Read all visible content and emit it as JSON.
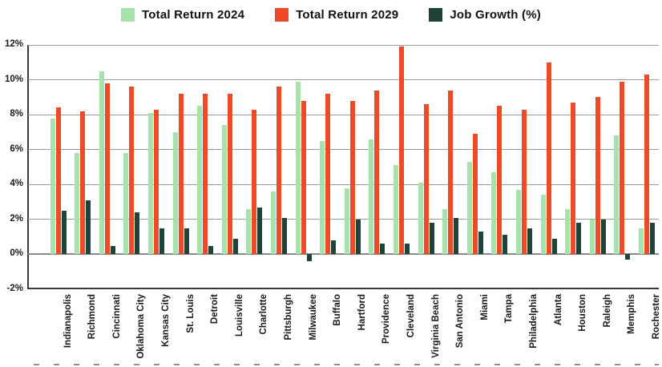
{
  "legend": {
    "items": [
      {
        "label": "Total Return 2024",
        "color": "#a6e3ab"
      },
      {
        "label": "Total Return 2029",
        "color": "#ef4a26"
      },
      {
        "label": "Job Growth (%)",
        "color": "#1f4337"
      }
    ]
  },
  "chart_data": {
    "type": "bar",
    "title": "",
    "xlabel": "",
    "ylabel": "",
    "ylim": [
      -2,
      12
    ],
    "ytick_step": 2,
    "yticks": [
      "12%",
      "10%",
      "8%",
      "6%",
      "4%",
      "2%",
      "0%",
      "-2%"
    ],
    "grid": "horizontal",
    "legend_position": "top",
    "categories": [
      "Indianapolis",
      "Richmond",
      "Cincinnati",
      "Oklahoma City",
      "Kansas City",
      "St. Louis",
      "Detroit",
      "Louisville",
      "Charlotte",
      "Pittsburgh",
      "Milwaukee",
      "Buffalo",
      "Hartford",
      "Providence",
      "Cleveland",
      "Virginia Beach",
      "San Antonio",
      "Miami",
      "Tampa",
      "Philadelphia",
      "Atlanta",
      "Houston",
      "Raleigh",
      "Memphis",
      "Rochester"
    ],
    "series": [
      {
        "name": "Total Return 2024",
        "color": "#a6e3ab",
        "values": [
          7.8,
          5.8,
          10.5,
          5.8,
          8.1,
          7.0,
          8.5,
          7.4,
          2.6,
          3.6,
          9.9,
          6.5,
          3.8,
          6.6,
          5.1,
          4.1,
          2.6,
          5.3,
          4.7,
          3.7,
          3.4,
          2.6,
          2.0,
          6.8,
          1.5
        ]
      },
      {
        "name": "Total Return 2029",
        "color": "#ef4a26",
        "values": [
          8.4,
          8.2,
          9.8,
          9.6,
          8.3,
          9.2,
          9.2,
          9.2,
          8.3,
          9.6,
          8.8,
          9.2,
          8.8,
          9.4,
          11.9,
          8.6,
          9.4,
          6.9,
          8.5,
          8.3,
          11.0,
          8.7,
          9.0,
          9.9,
          10.3
        ]
      },
      {
        "name": "Job Growth (%)",
        "color": "#1f4337",
        "values": [
          2.5,
          3.1,
          0.5,
          2.4,
          1.5,
          1.5,
          0.5,
          0.9,
          2.7,
          2.1,
          -0.4,
          0.8,
          2.0,
          0.6,
          0.6,
          1.8,
          2.1,
          1.3,
          1.1,
          1.5,
          0.9,
          1.8,
          2.0,
          -0.3,
          1.8
        ]
      }
    ]
  }
}
